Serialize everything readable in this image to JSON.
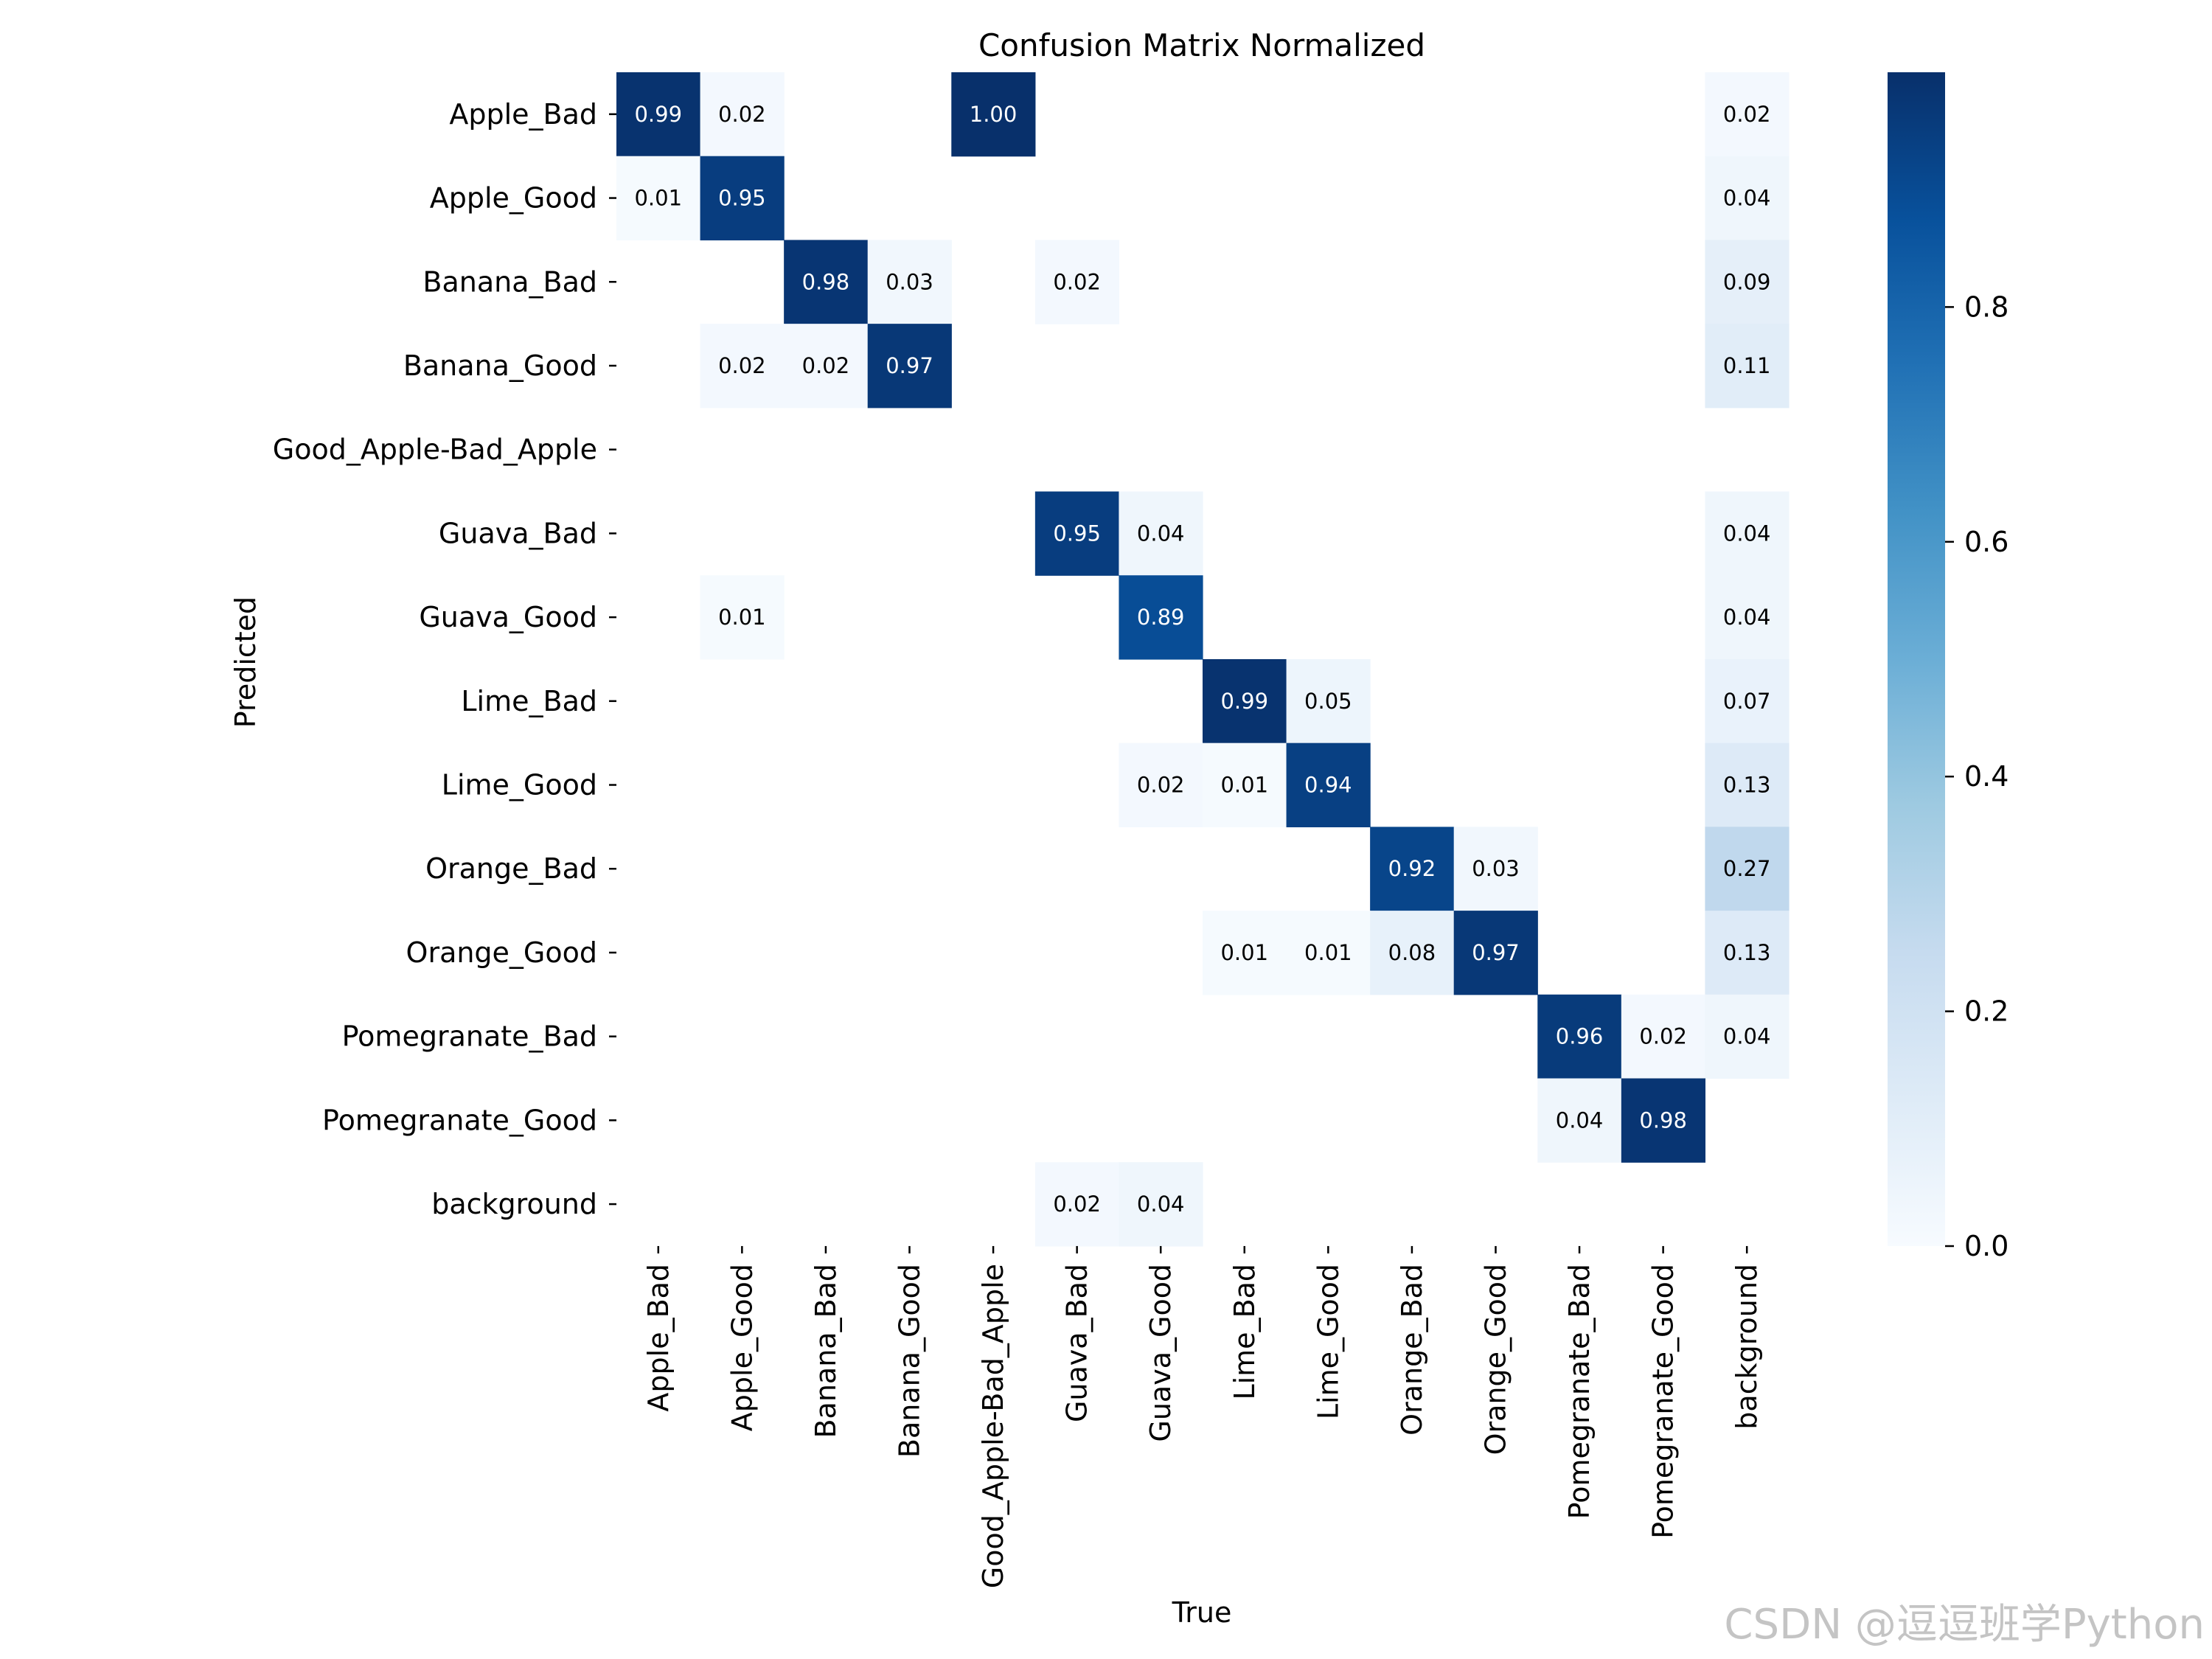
{
  "chart_data": {
    "type": "heatmap",
    "title": "Confusion Matrix Normalized",
    "xlabel": "True",
    "ylabel": "Predicted",
    "x_categories": [
      "Apple_Bad",
      "Apple_Good",
      "Banana_Bad",
      "Banana_Good",
      "Good_Apple-Bad_Apple",
      "Guava_Bad",
      "Guava_Good",
      "Lime_Bad",
      "Lime_Good",
      "Orange_Bad",
      "Orange_Good",
      "Pomegranate_Bad",
      "Pomegranate_Good",
      "background"
    ],
    "y_categories": [
      "Apple_Bad",
      "Apple_Good",
      "Banana_Bad",
      "Banana_Good",
      "Good_Apple-Bad_Apple",
      "Guava_Bad",
      "Guava_Good",
      "Lime_Bad",
      "Lime_Good",
      "Orange_Bad",
      "Orange_Good",
      "Pomegranate_Bad",
      "Pomegranate_Good",
      "background"
    ],
    "values": [
      [
        0.99,
        0.02,
        null,
        null,
        1.0,
        null,
        null,
        null,
        null,
        null,
        null,
        null,
        null,
        0.02
      ],
      [
        0.01,
        0.95,
        null,
        null,
        null,
        null,
        null,
        null,
        null,
        null,
        null,
        null,
        null,
        0.04
      ],
      [
        null,
        null,
        0.98,
        0.03,
        null,
        0.02,
        null,
        null,
        null,
        null,
        null,
        null,
        null,
        0.09
      ],
      [
        null,
        0.02,
        0.02,
        0.97,
        null,
        null,
        null,
        null,
        null,
        null,
        null,
        null,
        null,
        0.11
      ],
      [
        null,
        null,
        null,
        null,
        null,
        null,
        null,
        null,
        null,
        null,
        null,
        null,
        null,
        null
      ],
      [
        null,
        null,
        null,
        null,
        null,
        0.95,
        0.04,
        null,
        null,
        null,
        null,
        null,
        null,
        0.04
      ],
      [
        null,
        0.01,
        null,
        null,
        null,
        null,
        0.89,
        null,
        null,
        null,
        null,
        null,
        null,
        0.04
      ],
      [
        null,
        null,
        null,
        null,
        null,
        null,
        null,
        0.99,
        0.05,
        null,
        null,
        null,
        null,
        0.07
      ],
      [
        null,
        null,
        null,
        null,
        null,
        null,
        0.02,
        0.01,
        0.94,
        null,
        null,
        null,
        null,
        0.13
      ],
      [
        null,
        null,
        null,
        null,
        null,
        null,
        null,
        null,
        null,
        0.92,
        0.03,
        null,
        null,
        0.27
      ],
      [
        null,
        null,
        null,
        null,
        null,
        null,
        null,
        0.01,
        0.01,
        0.08,
        0.97,
        null,
        null,
        0.13
      ],
      [
        null,
        null,
        null,
        null,
        null,
        null,
        null,
        null,
        null,
        null,
        null,
        0.96,
        0.02,
        0.04
      ],
      [
        null,
        null,
        null,
        null,
        null,
        null,
        null,
        null,
        null,
        null,
        null,
        0.04,
        0.98,
        null
      ],
      [
        null,
        null,
        null,
        null,
        null,
        0.02,
        0.04,
        null,
        null,
        null,
        null,
        null,
        null,
        null
      ]
    ],
    "colormap": "Blues",
    "vmin": 0.0,
    "vmax": 1.0,
    "colorbar_ticks": [
      0.0,
      0.2,
      0.4,
      0.6,
      0.8
    ],
    "colorbar_tick_labels": [
      "0.0",
      "0.2",
      "0.4",
      "0.6",
      "0.8"
    ]
  },
  "watermark": "CSDN @逗逗班学Python"
}
